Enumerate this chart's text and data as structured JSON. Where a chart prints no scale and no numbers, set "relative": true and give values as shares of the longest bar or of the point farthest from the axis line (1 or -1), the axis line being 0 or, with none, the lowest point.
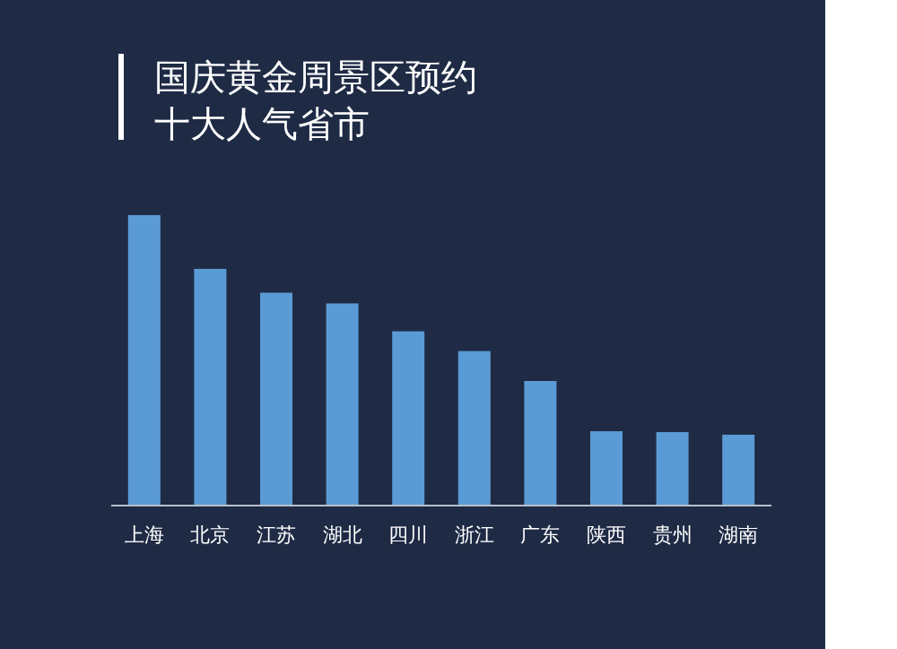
{
  "chart_data": {
    "type": "bar",
    "title": "国庆黄金周景区预约",
    "subtitle": "十大人气省市",
    "relative": true,
    "color": "#5b9bd5",
    "categories": [
      "上海",
      "北京",
      "江苏",
      "湖北",
      "四川",
      "浙江",
      "广东",
      "陕西",
      "贵州",
      "湖南"
    ],
    "values": [
      1,
      0.815,
      0.733,
      0.696,
      0.6,
      0.532,
      0.429,
      0.256,
      0.253,
      0.244
    ]
  }
}
